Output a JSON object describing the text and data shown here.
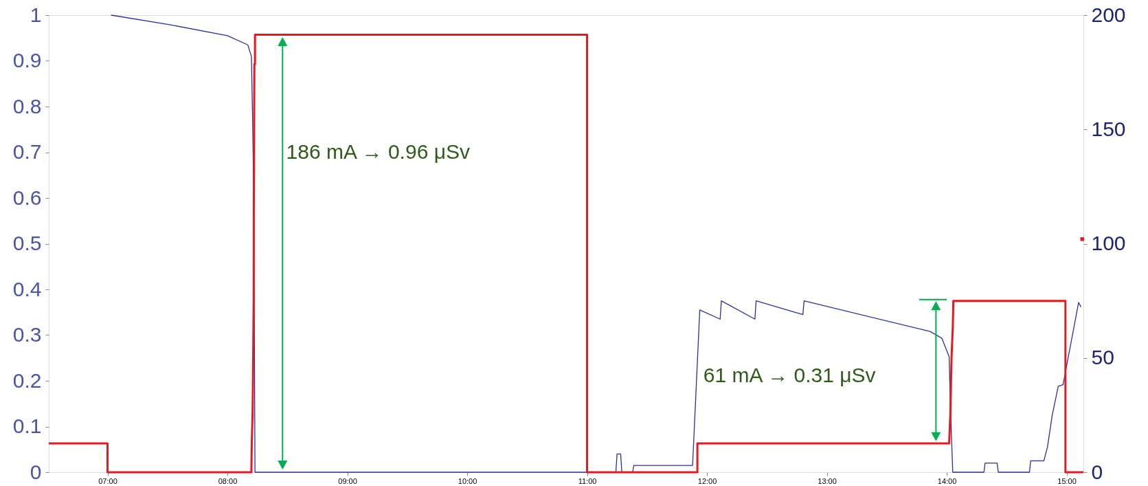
{
  "chart_data": {
    "type": "line",
    "xlim": [
      6.51,
      15.14
    ],
    "xticks": [
      {
        "value": 7,
        "label": "07:00"
      },
      {
        "value": 8,
        "label": "08:00"
      },
      {
        "value": 9,
        "label": "09:00"
      },
      {
        "value": 10,
        "label": "10:00"
      },
      {
        "value": 11,
        "label": "11:00"
      },
      {
        "value": 12,
        "label": "12:00"
      },
      {
        "value": 13,
        "label": "13:00"
      },
      {
        "value": 14,
        "label": "14:00"
      },
      {
        "value": 15,
        "label": "15:00"
      }
    ],
    "ylim": [
      0,
      1
    ],
    "yticks": [
      0,
      0.1,
      0.2,
      0.3,
      0.4,
      0.5,
      0.6,
      0.7,
      0.8,
      0.9,
      1
    ],
    "grid": false,
    "y2lim": [
      0,
      200
    ],
    "y2ticks": [
      0,
      50,
      100,
      150,
      200
    ],
    "series": [
      {
        "axis": "y2",
        "color": "#2b2f9a",
        "x": [
          7.03,
          7.5,
          8.0,
          8.17,
          8.2,
          8.21,
          8.22,
          8.23,
          11.24,
          11.25,
          11.28,
          11.29,
          11.38,
          11.39,
          11.88,
          11.94,
          12.11,
          12.12,
          12.4,
          12.41,
          12.8,
          12.81,
          13.86,
          13.96,
          14.02,
          14.03,
          14.05,
          14.31,
          14.32,
          14.42,
          14.43,
          14.69,
          14.7,
          14.81,
          14.84,
          14.88,
          14.93,
          14.97,
          15.1,
          15.12
        ],
        "values": [
          200,
          196,
          191,
          187,
          182,
          155,
          118.5,
          0,
          0,
          8,
          8,
          0,
          0,
          3,
          3,
          71,
          67,
          75,
          67,
          75,
          69,
          75,
          61.6,
          58.6,
          50.5,
          30,
          0,
          0,
          4,
          4,
          0,
          0,
          5,
          5,
          11,
          25,
          37.6,
          38.3,
          74.3,
          72.3
        ]
      },
      {
        "axis": "y",
        "color": "#e8191e",
        "x": [
          6.51,
          7.0,
          7.0,
          8.2,
          8.203,
          8.21,
          8.213,
          8.215,
          8.217,
          8.219,
          8.22,
          8.221,
          8.222,
          8.223,
          8.224,
          8.225,
          8.23,
          8.23,
          11.0,
          11.0,
          11.92,
          11.92,
          14.02,
          14.03,
          14.035,
          14.04,
          14.05,
          14.055,
          14.99,
          14.99,
          15.14
        ],
        "values": [
          0.063,
          0.063,
          0,
          0,
          0.063,
          0.128,
          0.192,
          0.255,
          0.319,
          0.383,
          0.573,
          0.636,
          0.7,
          0.765,
          0.829,
          0.893,
          0.893,
          0.957,
          0.957,
          0,
          0,
          0.063,
          0.063,
          0.128,
          0.188,
          0.251,
          0.314,
          0.375,
          0.375,
          0,
          0
        ]
      },
      {
        "type": "scatter",
        "axis": "y",
        "color": "#e8191e",
        "marker": "square",
        "x": [
          15.13
        ],
        "values": [
          0.51
        ]
      }
    ],
    "annotations": [
      "186 mA → 0.96 μSv",
      "61 mA → 0.31 μSv"
    ]
  }
}
